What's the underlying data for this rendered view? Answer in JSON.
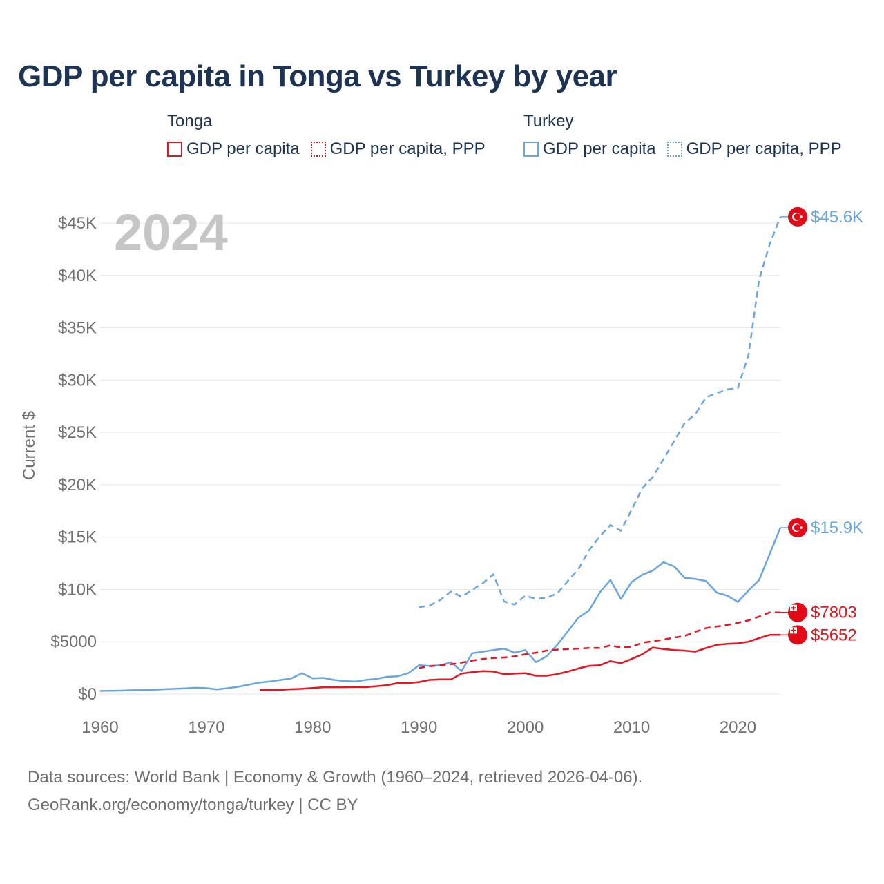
{
  "title": "GDP per capita in Tonga vs Turkey by year",
  "legend": {
    "tonga": {
      "title": "Tonga",
      "items": [
        "GDP per capita",
        "GDP per capita, PPP"
      ]
    },
    "turkey": {
      "title": "Turkey",
      "items": [
        "GDP per capita",
        "GDP per capita, PPP"
      ]
    }
  },
  "year_watermark": "2024",
  "colors": {
    "tonga": "#e8141f",
    "turkey": "#68a6e2",
    "grid": "#e6e6e6",
    "axis_text": "#707070",
    "title": "#1c3354",
    "watermark": "#c6c6c6"
  },
  "source": {
    "line1": "Data sources: World Bank | Economy & Growth (1960–2024, retrieved 2026-04-06).",
    "line2": "GeoRank.org/economy/tonga/turkey | CC BY"
  },
  "chart_data": {
    "type": "line",
    "ylabel": "Current $",
    "xlabel": "",
    "xlim": [
      1960,
      2024
    ],
    "ylim": [
      0,
      45000
    ],
    "x_ticks": [
      1960,
      1970,
      1980,
      1990,
      2000,
      2010,
      2020
    ],
    "x_tick_labels": [
      "1960",
      "1970",
      "1980",
      "1990",
      "2000",
      "2010",
      "2020"
    ],
    "y_ticks": [
      0,
      5000,
      10000,
      15000,
      20000,
      25000,
      30000,
      35000,
      40000,
      45000
    ],
    "y_tick_labels": [
      "$0",
      "$5000",
      "$10K",
      "$15K",
      "$20K",
      "$25K",
      "$30K",
      "$35K",
      "$40K",
      "$45K"
    ],
    "grid": true,
    "series": [
      {
        "name": "Turkey GDP per capita, PPP",
        "country": "turkey",
        "style": "dashed",
        "end_label": "$45.6K",
        "points": [
          [
            1990,
            8300
          ],
          [
            1991,
            8450
          ],
          [
            1992,
            9000
          ],
          [
            1993,
            9800
          ],
          [
            1994,
            9300
          ],
          [
            1995,
            9950
          ],
          [
            1996,
            10600
          ],
          [
            1997,
            11450
          ],
          [
            1998,
            8850
          ],
          [
            1999,
            8550
          ],
          [
            2000,
            9400
          ],
          [
            2001,
            9100
          ],
          [
            2002,
            9200
          ],
          [
            2003,
            9600
          ],
          [
            2004,
            10800
          ],
          [
            2005,
            11950
          ],
          [
            2006,
            13750
          ],
          [
            2007,
            15050
          ],
          [
            2008,
            16150
          ],
          [
            2009,
            15600
          ],
          [
            2010,
            17600
          ],
          [
            2011,
            19650
          ],
          [
            2012,
            20750
          ],
          [
            2013,
            22450
          ],
          [
            2014,
            24150
          ],
          [
            2015,
            25900
          ],
          [
            2016,
            26750
          ],
          [
            2017,
            28350
          ],
          [
            2018,
            28750
          ],
          [
            2019,
            29100
          ],
          [
            2020,
            29250
          ],
          [
            2021,
            32400
          ],
          [
            2022,
            39600
          ],
          [
            2023,
            43000
          ],
          [
            2024,
            45600
          ]
        ]
      },
      {
        "name": "Turkey GDP per capita",
        "country": "turkey",
        "style": "solid",
        "end_label": "$15.9K",
        "points": [
          [
            1960,
            300
          ],
          [
            1961,
            310
          ],
          [
            1962,
            330
          ],
          [
            1963,
            370
          ],
          [
            1964,
            380
          ],
          [
            1965,
            400
          ],
          [
            1966,
            460
          ],
          [
            1967,
            500
          ],
          [
            1968,
            540
          ],
          [
            1969,
            600
          ],
          [
            1970,
            570
          ],
          [
            1971,
            450
          ],
          [
            1972,
            560
          ],
          [
            1973,
            700
          ],
          [
            1974,
            900
          ],
          [
            1975,
            1100
          ],
          [
            1976,
            1200
          ],
          [
            1977,
            1350
          ],
          [
            1978,
            1500
          ],
          [
            1979,
            2000
          ],
          [
            1980,
            1500
          ],
          [
            1981,
            1550
          ],
          [
            1982,
            1350
          ],
          [
            1983,
            1250
          ],
          [
            1984,
            1200
          ],
          [
            1985,
            1350
          ],
          [
            1986,
            1450
          ],
          [
            1987,
            1650
          ],
          [
            1988,
            1700
          ],
          [
            1989,
            2000
          ],
          [
            1990,
            2750
          ],
          [
            1991,
            2700
          ],
          [
            1992,
            2750
          ],
          [
            1993,
            3050
          ],
          [
            1994,
            2200
          ],
          [
            1995,
            3900
          ],
          [
            1996,
            4050
          ],
          [
            1997,
            4200
          ],
          [
            1998,
            4350
          ],
          [
            1999,
            3950
          ],
          [
            2000,
            4200
          ],
          [
            2001,
            3050
          ],
          [
            2002,
            3600
          ],
          [
            2003,
            4700
          ],
          [
            2004,
            6000
          ],
          [
            2005,
            7300
          ],
          [
            2006,
            8000
          ],
          [
            2007,
            9700
          ],
          [
            2008,
            10900
          ],
          [
            2009,
            9100
          ],
          [
            2010,
            10700
          ],
          [
            2011,
            11400
          ],
          [
            2012,
            11800
          ],
          [
            2013,
            12600
          ],
          [
            2014,
            12200
          ],
          [
            2015,
            11100
          ],
          [
            2016,
            11000
          ],
          [
            2017,
            10800
          ],
          [
            2018,
            9700
          ],
          [
            2019,
            9400
          ],
          [
            2020,
            8800
          ],
          [
            2021,
            9900
          ],
          [
            2022,
            10900
          ],
          [
            2023,
            13400
          ],
          [
            2024,
            15900
          ]
        ]
      },
      {
        "name": "Tonga GDP per capita, PPP",
        "country": "tonga",
        "style": "dashed",
        "end_label": "$7803",
        "points": [
          [
            1990,
            2500
          ],
          [
            1991,
            2650
          ],
          [
            1992,
            2750
          ],
          [
            1993,
            2850
          ],
          [
            1994,
            3000
          ],
          [
            1995,
            3200
          ],
          [
            1996,
            3350
          ],
          [
            1997,
            3450
          ],
          [
            1998,
            3500
          ],
          [
            1999,
            3600
          ],
          [
            2000,
            3800
          ],
          [
            2001,
            3950
          ],
          [
            2002,
            4150
          ],
          [
            2003,
            4250
          ],
          [
            2004,
            4300
          ],
          [
            2005,
            4350
          ],
          [
            2006,
            4400
          ],
          [
            2007,
            4400
          ],
          [
            2008,
            4650
          ],
          [
            2009,
            4450
          ],
          [
            2010,
            4500
          ],
          [
            2011,
            4900
          ],
          [
            2012,
            5050
          ],
          [
            2013,
            5200
          ],
          [
            2014,
            5400
          ],
          [
            2015,
            5550
          ],
          [
            2016,
            5950
          ],
          [
            2017,
            6300
          ],
          [
            2018,
            6450
          ],
          [
            2019,
            6600
          ],
          [
            2020,
            6800
          ],
          [
            2021,
            7050
          ],
          [
            2022,
            7400
          ],
          [
            2023,
            7803
          ],
          [
            2024,
            7803
          ]
        ]
      },
      {
        "name": "Tonga GDP per capita",
        "country": "tonga",
        "style": "solid",
        "end_label": "$5652",
        "points": [
          [
            1975,
            400
          ],
          [
            1976,
            380
          ],
          [
            1977,
            400
          ],
          [
            1978,
            460
          ],
          [
            1979,
            500
          ],
          [
            1980,
            580
          ],
          [
            1981,
            650
          ],
          [
            1982,
            650
          ],
          [
            1983,
            650
          ],
          [
            1984,
            680
          ],
          [
            1985,
            660
          ],
          [
            1986,
            750
          ],
          [
            1987,
            850
          ],
          [
            1988,
            1050
          ],
          [
            1989,
            1050
          ],
          [
            1990,
            1150
          ],
          [
            1991,
            1350
          ],
          [
            1992,
            1400
          ],
          [
            1993,
            1400
          ],
          [
            1994,
            1950
          ],
          [
            1995,
            2100
          ],
          [
            1996,
            2200
          ],
          [
            1997,
            2150
          ],
          [
            1998,
            1900
          ],
          [
            1999,
            1950
          ],
          [
            2000,
            2000
          ],
          [
            2001,
            1750
          ],
          [
            2002,
            1750
          ],
          [
            2003,
            1900
          ],
          [
            2004,
            2150
          ],
          [
            2005,
            2450
          ],
          [
            2006,
            2700
          ],
          [
            2007,
            2750
          ],
          [
            2008,
            3150
          ],
          [
            2009,
            2950
          ],
          [
            2010,
            3350
          ],
          [
            2011,
            3800
          ],
          [
            2012,
            4450
          ],
          [
            2013,
            4300
          ],
          [
            2014,
            4200
          ],
          [
            2015,
            4150
          ],
          [
            2016,
            4050
          ],
          [
            2017,
            4400
          ],
          [
            2018,
            4700
          ],
          [
            2019,
            4800
          ],
          [
            2020,
            4850
          ],
          [
            2021,
            5000
          ],
          [
            2022,
            5350
          ],
          [
            2023,
            5652
          ],
          [
            2024,
            5652
          ]
        ]
      }
    ]
  }
}
